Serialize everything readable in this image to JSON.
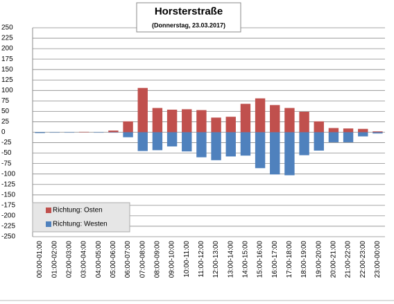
{
  "chart_data": {
    "type": "bar",
    "title": "Horsterstraße",
    "subtitle": "(Donnerstag, 23.03.2017)",
    "categories": [
      "00:00-01:00",
      "01:00-02:00",
      "02:00-03:00",
      "03:00-04:00",
      "04:00-05:00",
      "05:00-06:00",
      "06:00-07:00",
      "07:00-08:00",
      "08:00-09:00",
      "09:00-10:00",
      "10:00-11:00",
      "11:00-12:00",
      "12:00-13:00",
      "13:00-14:00",
      "14:00-15:00",
      "15:00-16:00",
      "16:00-17:00",
      "17:00-18:00",
      "18:00-19:00",
      "19:00-20:00",
      "20:00-21:00",
      "21:00-22:00",
      "22:00-23:00",
      "23:00-00:00"
    ],
    "series": [
      {
        "name": "Richtung: Osten",
        "color": "#c0504d",
        "values": [
          0,
          0,
          0,
          1,
          0,
          4,
          26,
          106,
          58,
          54,
          55,
          53,
          35,
          37,
          68,
          81,
          65,
          58,
          49,
          26,
          10,
          9,
          8,
          2
        ]
      },
      {
        "name": "Richtung: Westen",
        "color": "#4f81bd",
        "values": [
          -2,
          -1,
          -1,
          0,
          -1,
          -1,
          -12,
          -45,
          -43,
          -34,
          -46,
          -60,
          -67,
          -58,
          -56,
          -86,
          -101,
          -103,
          -55,
          -44,
          -24,
          -24,
          -10,
          -3
        ]
      }
    ],
    "ylim": [
      -250,
      250
    ],
    "yticks": [
      -250,
      -225,
      -200,
      -175,
      -150,
      -125,
      -100,
      -75,
      -50,
      -25,
      0,
      25,
      50,
      75,
      100,
      125,
      150,
      175,
      200,
      225,
      250
    ],
    "grid": true,
    "legend": "lower-left"
  }
}
